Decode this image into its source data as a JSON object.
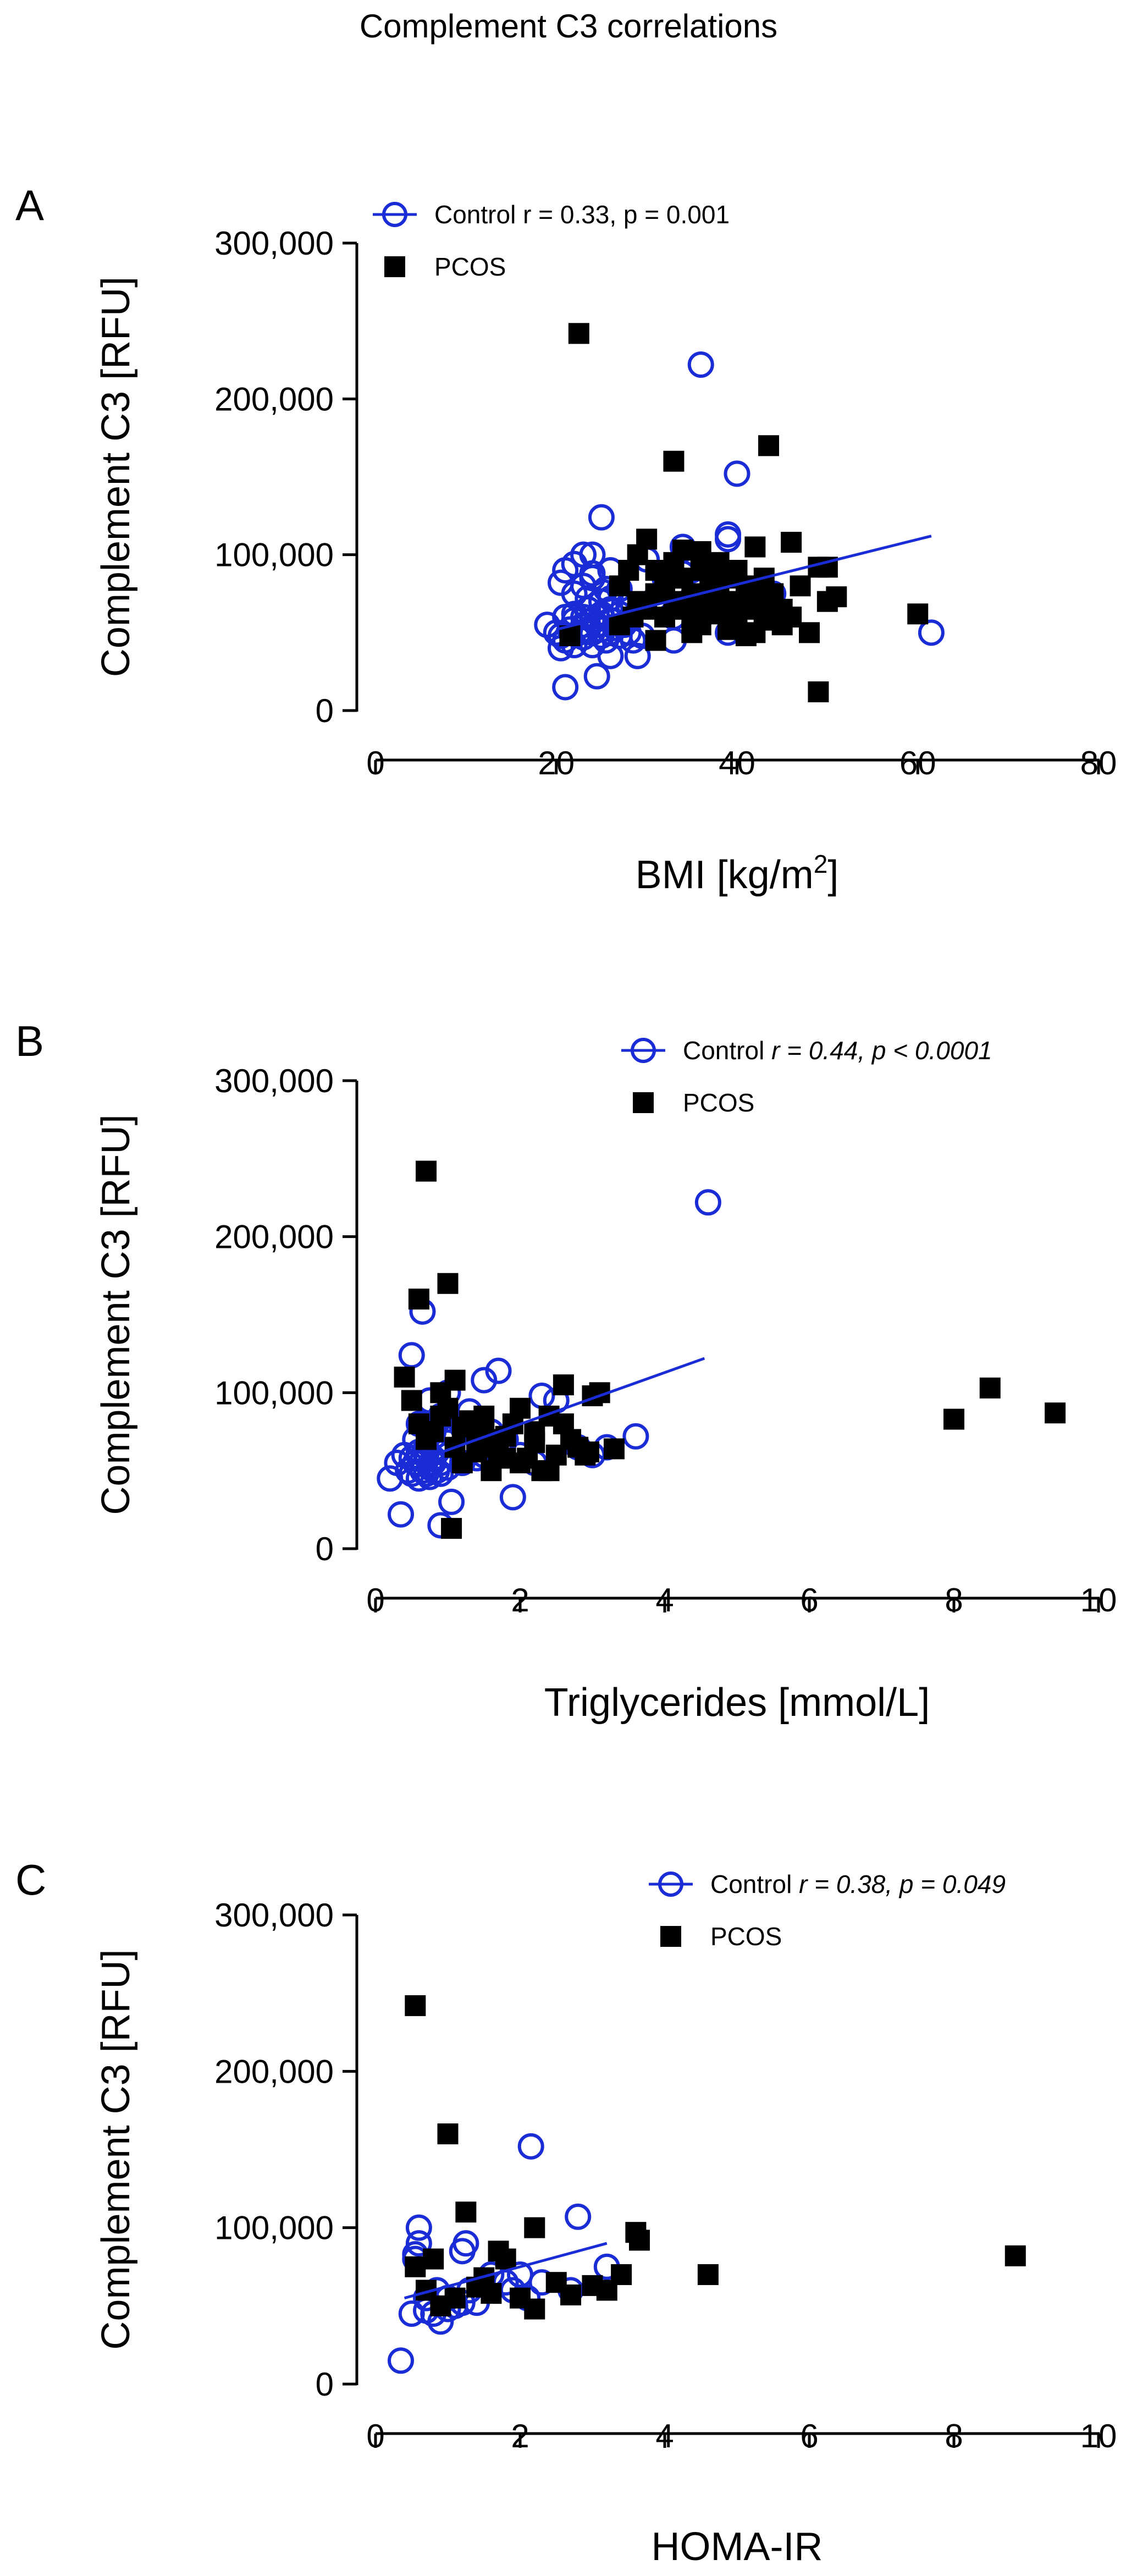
{
  "figure_title": "Complement C3 correlations",
  "colors": {
    "control": "#1a2cd6",
    "pcos": "#000000"
  },
  "chart_data": [
    {
      "panel": "A",
      "type": "scatter",
      "xlabel": "BMI [kg/m",
      "xlabel_sup": "2",
      "xlabel_end": "]",
      "ylabel": "Complement C3 [RFU]",
      "xlim": [
        0,
        80
      ],
      "ylim": [
        0,
        300000
      ],
      "xticks": [
        0,
        20,
        40,
        60,
        80
      ],
      "yticks": [
        0,
        100000,
        200000,
        300000
      ],
      "xtick_labels": [
        "0",
        "20",
        "40",
        "60",
        "80"
      ],
      "ytick_labels": [
        "0",
        "100,000",
        "200,000",
        "300,000"
      ],
      "legend_position": "top-left",
      "legend": [
        {
          "series": "Control",
          "label": "Control r = 0.33, p = 0.001",
          "label_main": "Control",
          "label_stats": "r = 0.33, p = 0.001",
          "stats_italic": false,
          "marker": "open-circle"
        },
        {
          "series": "PCOS",
          "label": "PCOS",
          "label_main": "PCOS",
          "label_stats": "",
          "stats_italic": false,
          "marker": "filled-square"
        }
      ],
      "regression": {
        "series": "Control",
        "x": [
          20,
          61.5
        ],
        "y": [
          52000,
          112000
        ]
      },
      "series": [
        {
          "name": "Control",
          "marker": "open-circle",
          "x": [
            19,
            20,
            20.5,
            21,
            21,
            21.5,
            22,
            22,
            22.5,
            23,
            23,
            23,
            23.5,
            23.5,
            24,
            24,
            24,
            24.5,
            25,
            25,
            25,
            25.5,
            26,
            26,
            26,
            26.5,
            27,
            27,
            27.5,
            28,
            28,
            28.5,
            20.5,
            21,
            22,
            23,
            24,
            25,
            26,
            27,
            28,
            23,
            24,
            25,
            22,
            26,
            21,
            24.5,
            26,
            29,
            30,
            31,
            32,
            33,
            33,
            34,
            34,
            35,
            35,
            36,
            36,
            37,
            38,
            39,
            39,
            40,
            44,
            61.5,
            36,
            39,
            25.5,
            24,
            20.5,
            22,
            23.5,
            25,
            29.5
          ],
          "y": [
            55000,
            50000,
            48000,
            45000,
            60000,
            52000,
            58000,
            42000,
            50000,
            55000,
            47000,
            60000,
            52000,
            65000,
            50000,
            42000,
            58000,
            55000,
            48000,
            62000,
            52000,
            45000,
            50000,
            58000,
            65000,
            53000,
            48000,
            62000,
            55000,
            58000,
            50000,
            45000,
            82000,
            90000,
            75000,
            80000,
            85000,
            70000,
            72000,
            78000,
            68000,
            100000,
            100000,
            124000,
            94000,
            90000,
            15000,
            22000,
            35000,
            35000,
            97000,
            72000,
            85000,
            45000,
            60000,
            88000,
            105000,
            90000,
            72000,
            70000,
            65000,
            75000,
            90000,
            110000,
            113000,
            152000,
            75000,
            50000,
            222000,
            50000,
            78000,
            88000,
            40000,
            62000,
            72000,
            60000,
            48000
          ]
        },
        {
          "name": "PCOS",
          "marker": "filled-square",
          "x": [
            22.5,
            33,
            43.5,
            21.5,
            27,
            28.5,
            29,
            30,
            31,
            31,
            32,
            32,
            33,
            33,
            34,
            34,
            35,
            35,
            36,
            36,
            37,
            37,
            38,
            38,
            39,
            39,
            40,
            40,
            41,
            41,
            42,
            42,
            43,
            43,
            44,
            44,
            45,
            45,
            46,
            47,
            48,
            49,
            49,
            50,
            50,
            51,
            60,
            27,
            29,
            30,
            34,
            36,
            38,
            40,
            42,
            44,
            46,
            31,
            35,
            39,
            41,
            33,
            37,
            43,
            28,
            32,
            36,
            40
          ],
          "y": [
            242000,
            160000,
            170000,
            48000,
            55000,
            60000,
            70000,
            65000,
            75000,
            90000,
            60000,
            80000,
            70000,
            95000,
            65000,
            85000,
            60000,
            75000,
            70000,
            90000,
            65000,
            80000,
            75000,
            95000,
            60000,
            85000,
            70000,
            90000,
            65000,
            80000,
            50000,
            75000,
            60000,
            85000,
            70000,
            75000,
            65000,
            55000,
            108000,
            80000,
            50000,
            92000,
            12000,
            70000,
            92000,
            73000,
            62000,
            80000,
            100000,
            110000,
            103000,
            55000,
            62000,
            55000,
            105000,
            58000,
            60000,
            45000,
            50000,
            52000,
            48000,
            85000,
            92000,
            62000,
            90000,
            78000,
            102000,
            88000
          ]
        }
      ]
    },
    {
      "panel": "B",
      "type": "scatter",
      "xlabel": "Triglycerides [mmol/L]",
      "xlabel_sup": "",
      "xlabel_end": "",
      "ylabel": "Complement C3 [RFU]",
      "xlim": [
        0,
        10
      ],
      "ylim": [
        0,
        300000
      ],
      "xticks": [
        0,
        2,
        4,
        6,
        8,
        10
      ],
      "yticks": [
        0,
        100000,
        200000,
        300000
      ],
      "xtick_labels": [
        "0",
        "2",
        "4",
        "6",
        "8",
        "10"
      ],
      "ytick_labels": [
        "0",
        "100,000",
        "200,000",
        "300,000"
      ],
      "legend_position": "top-right",
      "legend": [
        {
          "series": "Control",
          "label": "Control r = 0.44, p < 0.0001",
          "label_main": "Control",
          "label_stats": "r = 0.44, p < 0.0001",
          "stats_italic": true,
          "marker": "open-circle"
        },
        {
          "series": "PCOS",
          "label": "PCOS",
          "label_main": "PCOS",
          "label_stats": "",
          "stats_italic": false,
          "marker": "filled-square"
        }
      ],
      "regression": {
        "series": "Control",
        "x": [
          0.5,
          4.55
        ],
        "y": [
          55000,
          122000
        ]
      },
      "series": [
        {
          "name": "Control",
          "marker": "open-circle",
          "x": [
            0.3,
            0.4,
            0.45,
            0.5,
            0.5,
            0.55,
            0.6,
            0.6,
            0.65,
            0.65,
            0.7,
            0.7,
            0.75,
            0.75,
            0.8,
            0.8,
            0.85,
            0.85,
            0.9,
            0.9,
            1.0,
            1.0,
            1.1,
            1.2,
            1.3,
            1.4,
            1.5,
            0.55,
            0.6,
            0.7,
            0.8,
            0.9,
            1.0,
            1.1,
            1.2,
            1.4,
            1.6,
            1.8,
            2.0,
            2.2,
            2.5,
            2.8,
            3.0,
            3.2,
            3.6,
            1.9,
            0.9,
            0.35,
            0.2,
            1.0,
            1.5,
            1.7,
            0.65,
            0.75,
            0.5,
            1.3,
            2.3,
            4.6,
            1.05
          ],
          "y": [
            55000,
            60000,
            50000,
            48000,
            58000,
            55000,
            45000,
            62000,
            50000,
            57000,
            48000,
            60000,
            52000,
            46000,
            55000,
            58000,
            50000,
            62000,
            55000,
            48000,
            52000,
            60000,
            58000,
            55000,
            62000,
            58000,
            60000,
            70000,
            80000,
            65000,
            75000,
            85000,
            68000,
            72000,
            78000,
            80000,
            75000,
            70000,
            60000,
            55000,
            95000,
            65000,
            60000,
            65000,
            72000,
            33000,
            15000,
            22000,
            45000,
            100000,
            108000,
            114000,
            152000,
            95000,
            124000,
            88000,
            98000,
            222000,
            30000
          ]
        },
        {
          "name": "PCOS",
          "marker": "filled-square",
          "x": [
            0.7,
            0.6,
            1.0,
            0.4,
            0.5,
            0.6,
            0.7,
            0.8,
            0.9,
            1.0,
            1.1,
            1.2,
            1.3,
            1.4,
            1.5,
            1.6,
            1.7,
            1.8,
            1.9,
            2.0,
            2.1,
            2.2,
            2.3,
            2.4,
            2.5,
            2.6,
            2.7,
            2.8,
            2.9,
            3.0,
            3.1,
            3.3,
            1.05,
            1.2,
            1.4,
            1.6,
            1.8,
            2.0,
            2.2,
            2.4,
            2.6,
            0.9,
            1.1,
            1.3,
            1.5,
            1.7,
            8.0,
            8.5,
            9.4,
            2.95
          ],
          "y": [
            242000,
            160000,
            170000,
            110000,
            95000,
            80000,
            70000,
            75000,
            85000,
            90000,
            65000,
            78000,
            80000,
            70000,
            85000,
            65000,
            60000,
            72000,
            80000,
            90000,
            58000,
            75000,
            50000,
            85000,
            60000,
            80000,
            70000,
            65000,
            60000,
            98000,
            100000,
            64000,
            13000,
            55000,
            62000,
            50000,
            58000,
            55000,
            68000,
            50000,
            105000,
            100000,
            108000,
            82000,
            75000,
            70000,
            83000,
            103000,
            87000,
            62000
          ]
        }
      ]
    },
    {
      "panel": "C",
      "type": "scatter",
      "xlabel": "HOMA-IR",
      "xlabel_sup": "",
      "xlabel_end": "",
      "ylabel": "Complement C3 [RFU]",
      "xlim": [
        0,
        10
      ],
      "ylim": [
        0,
        300000
      ],
      "xticks": [
        0,
        2,
        4,
        6,
        8,
        10
      ],
      "yticks": [
        0,
        100000,
        200000,
        300000
      ],
      "xtick_labels": [
        "0",
        "2",
        "4",
        "6",
        "8",
        "10"
      ],
      "ytick_labels": [
        "0",
        "100,000",
        "200,000",
        "300,000"
      ],
      "legend_position": "top-right",
      "legend": [
        {
          "series": "Control",
          "label": "Control r = 0.38, p = 0.049",
          "label_main": "Control",
          "label_stats": "r = 0.38, p = 0.049",
          "stats_italic": true,
          "marker": "open-circle"
        },
        {
          "series": "PCOS",
          "label": "PCOS",
          "label_main": "PCOS",
          "label_stats": "",
          "stats_italic": false,
          "marker": "filled-square"
        }
      ],
      "regression": {
        "series": "Control",
        "x": [
          0.4,
          3.2
        ],
        "y": [
          55000,
          90000
        ]
      },
      "series": [
        {
          "name": "Control",
          "marker": "open-circle",
          "x": [
            0.35,
            0.5,
            0.55,
            0.6,
            0.7,
            0.8,
            0.85,
            0.9,
            1.0,
            1.1,
            1.2,
            1.25,
            1.3,
            1.4,
            1.6,
            1.8,
            1.9,
            2.0,
            2.1,
            2.15,
            2.3,
            2.7,
            2.8,
            3.2,
            0.6,
            0.55,
            1.0,
            1.2,
            0.7
          ],
          "y": [
            15000,
            45000,
            80000,
            100000,
            55000,
            45000,
            60000,
            40000,
            55000,
            50000,
            85000,
            90000,
            60000,
            52000,
            70000,
            65000,
            60000,
            70000,
            55000,
            152000,
            65000,
            60000,
            107000,
            75000,
            90000,
            83000,
            48000,
            52000,
            47000
          ]
        },
        {
          "name": "PCOS",
          "marker": "filled-square",
          "x": [
            0.55,
            1.0,
            0.55,
            1.25,
            0.8,
            1.7,
            2.2,
            0.9,
            1.1,
            1.4,
            1.6,
            1.8,
            2.0,
            2.2,
            2.5,
            2.7,
            3.0,
            3.2,
            3.4,
            3.6,
            3.65,
            4.6,
            8.85,
            0.7,
            1.5
          ],
          "y": [
            242000,
            160000,
            75000,
            110000,
            80000,
            85000,
            100000,
            50000,
            55000,
            62000,
            58000,
            80000,
            55000,
            48000,
            65000,
            57000,
            63000,
            60000,
            70000,
            97000,
            92000,
            70000,
            82000,
            60000,
            68000
          ]
        }
      ]
    }
  ]
}
